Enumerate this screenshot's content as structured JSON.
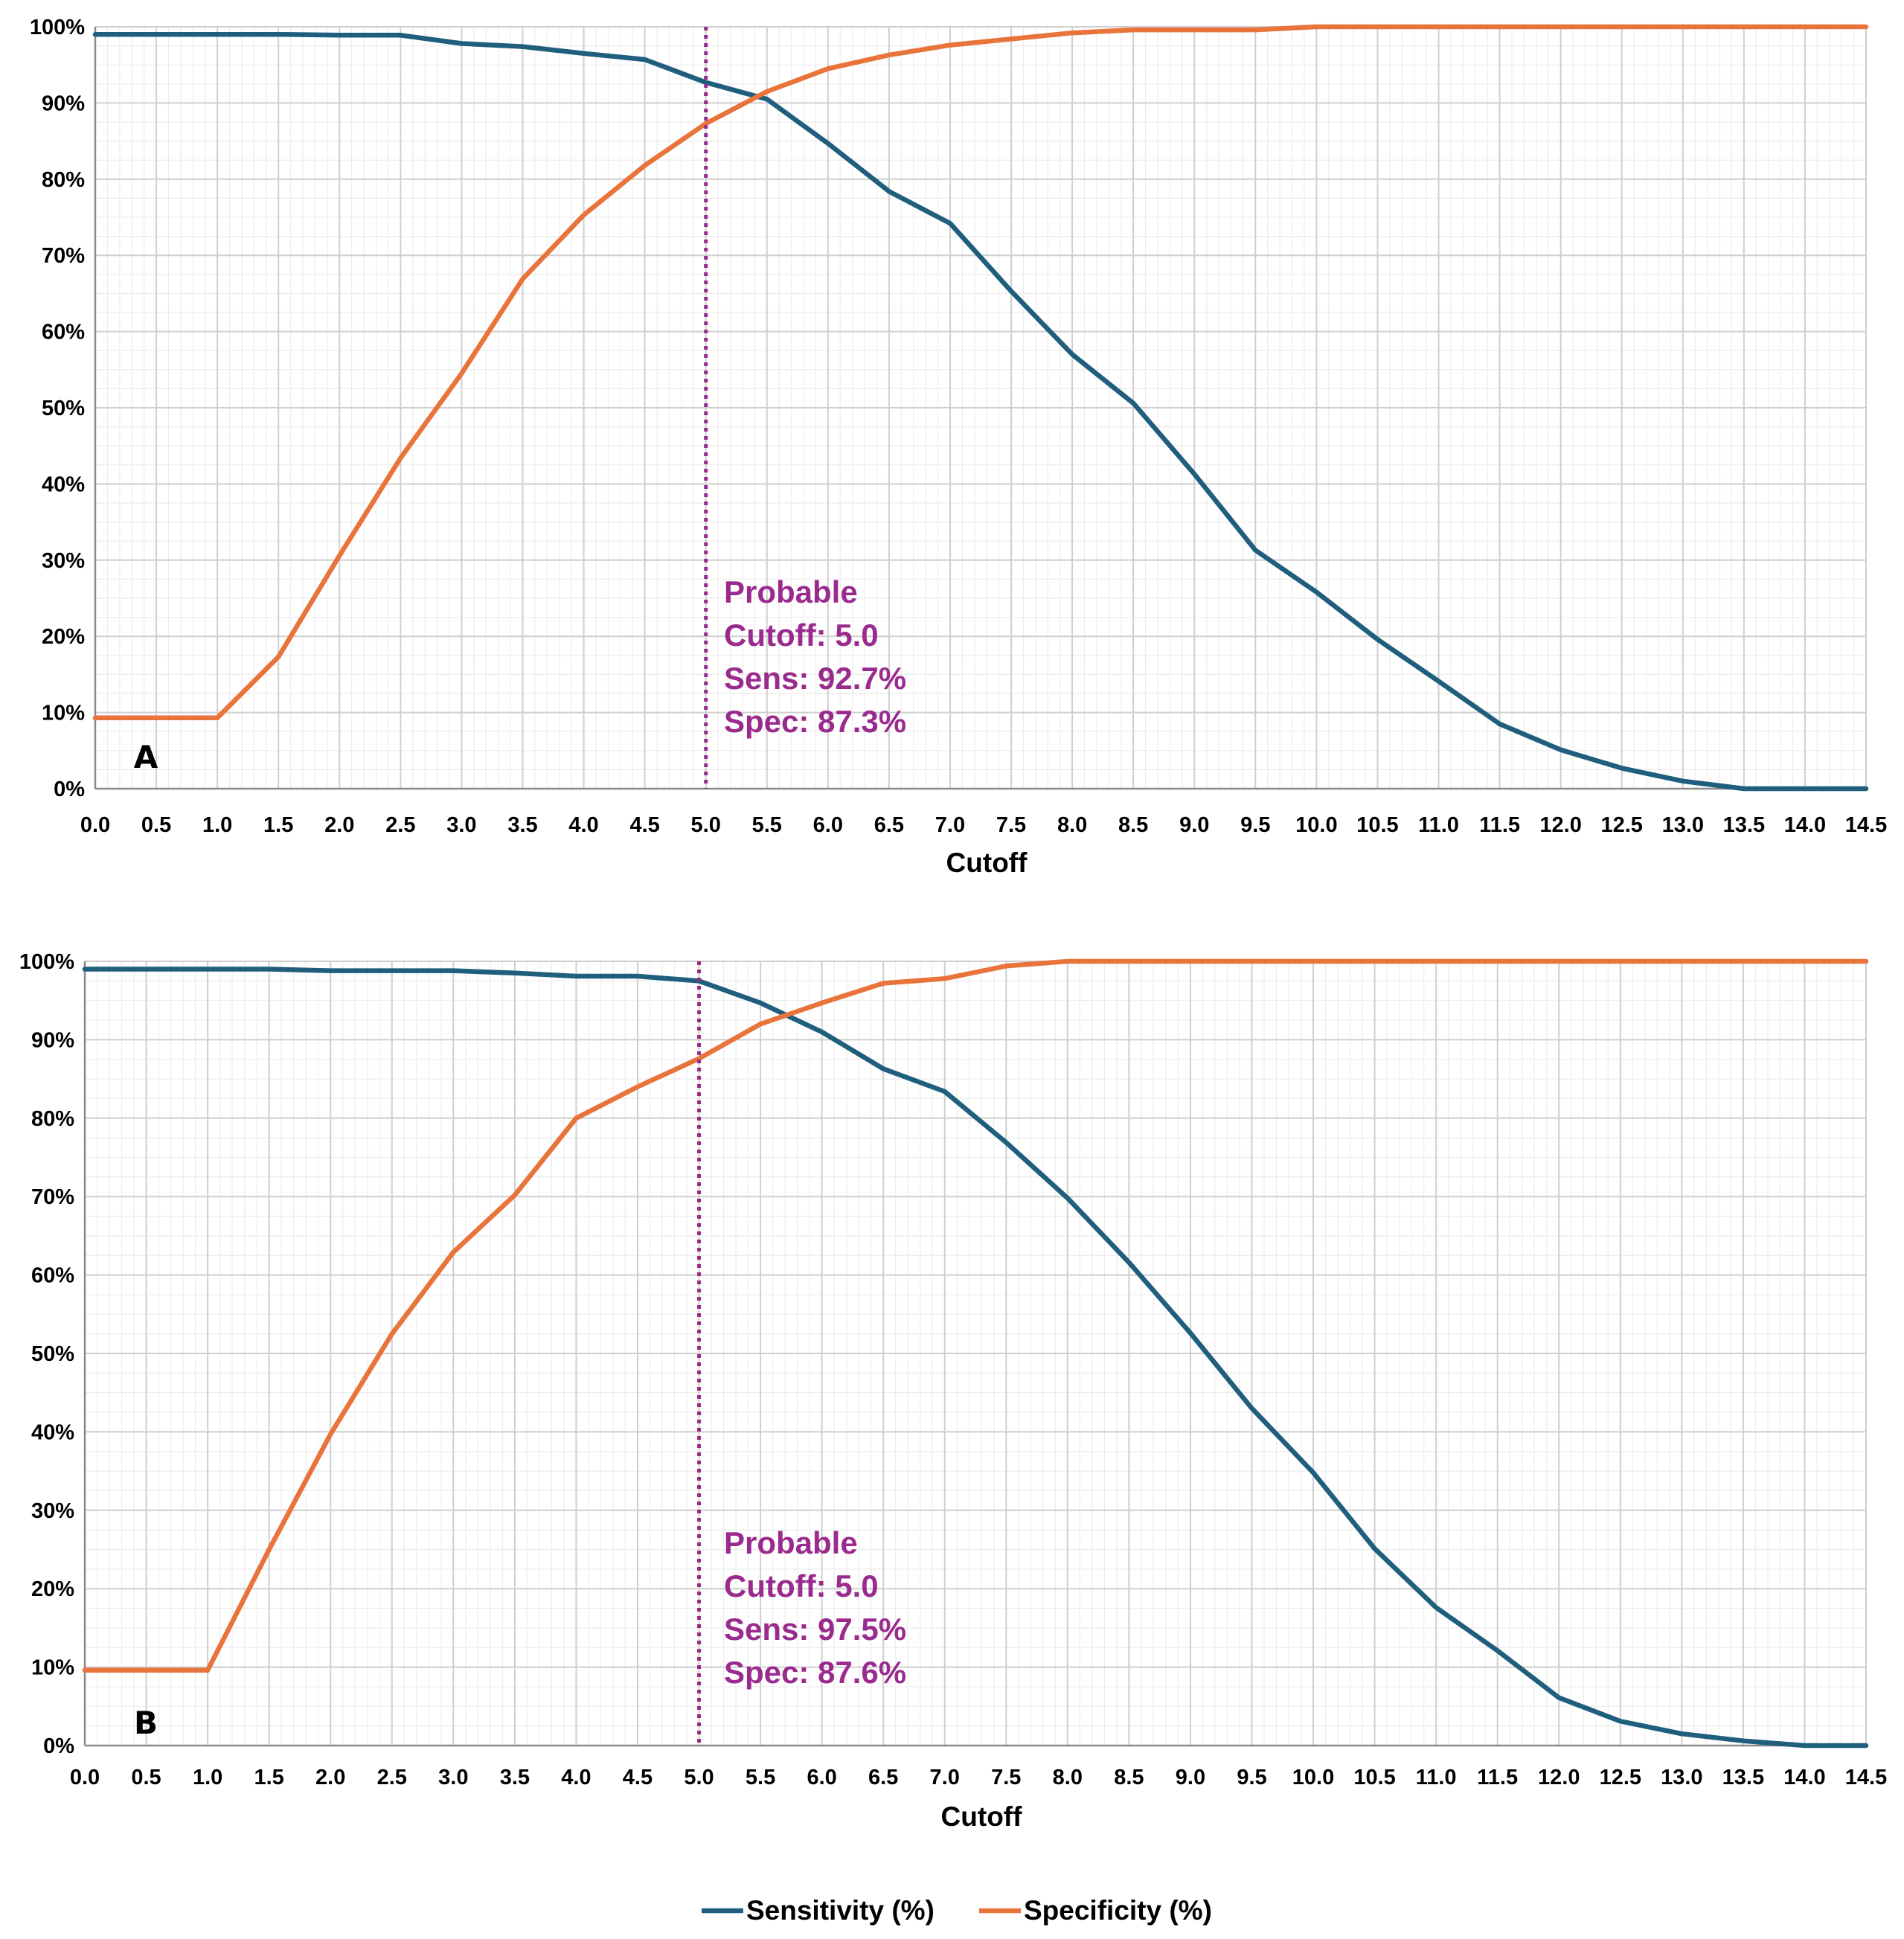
{
  "chart_data": [
    {
      "type": "line",
      "panel_label": "A",
      "xlabel": "Cutoff",
      "ylabel": "",
      "x": [
        0.0,
        0.5,
        1.0,
        1.5,
        2.0,
        2.5,
        3.0,
        3.5,
        4.0,
        4.5,
        5.0,
        5.5,
        6.0,
        6.5,
        7.0,
        7.5,
        8.0,
        8.5,
        9.0,
        9.5,
        10.0,
        10.5,
        11.0,
        11.5,
        12.0,
        12.5,
        13.0,
        13.5,
        14.0,
        14.5
      ],
      "x_tick_labels": [
        "0.0",
        "0.5",
        "1.0",
        "1.5",
        "2.0",
        "2.5",
        "3.0",
        "3.5",
        "4.0",
        "4.5",
        "5.0",
        "5.5",
        "6.0",
        "6.5",
        "7.0",
        "7.5",
        "8.0",
        "8.5",
        "9.0",
        "9.5",
        "10.0",
        "10.5",
        "11.0",
        "11.5",
        "12.0",
        "12.5",
        "13.0",
        "13.5",
        "14.0",
        "14.5"
      ],
      "y_tick_labels": [
        "0%",
        "10%",
        "20%",
        "30%",
        "40%",
        "50%",
        "60%",
        "70%",
        "80%",
        "90%",
        "100%"
      ],
      "xlim": [
        0,
        14.5
      ],
      "ylim": [
        0,
        100
      ],
      "grid": true,
      "series": [
        {
          "name": "Sensitivity (%)",
          "color": "#1f5e7c",
          "values": [
            99.0,
            99.0,
            99.0,
            99.0,
            98.9,
            98.9,
            97.8,
            97.4,
            96.5,
            95.7,
            92.7,
            90.5,
            84.7,
            78.4,
            74.2,
            65.3,
            57.0,
            50.6,
            41.3,
            31.3,
            25.8,
            19.6,
            14.1,
            8.5,
            5.1,
            2.7,
            1.0,
            0.0,
            0.0,
            0.0
          ]
        },
        {
          "name": "Specificity (%)",
          "color": "#e8743b",
          "values": [
            9.3,
            9.3,
            9.3,
            17.3,
            30.6,
            43.4,
            54.5,
            66.9,
            75.3,
            81.8,
            87.3,
            91.5,
            94.5,
            96.3,
            97.6,
            98.4,
            99.2,
            99.6,
            99.6,
            99.6,
            100.0,
            100.0,
            100.0,
            100.0,
            100.0,
            100.0,
            100.0,
            100.0,
            100.0,
            100.0
          ]
        }
      ],
      "cutoff_line_x": 5.0,
      "annotation": {
        "line1": "Probable",
        "line2": "Cutoff: 5.0",
        "line3": "Sens: 92.7%",
        "line4": "Spec: 87.3%",
        "color": "#9a2a8e"
      }
    },
    {
      "type": "line",
      "panel_label": "B",
      "xlabel": "Cutoff",
      "ylabel": "",
      "x": [
        0.0,
        0.5,
        1.0,
        1.5,
        2.0,
        2.5,
        3.0,
        3.5,
        4.0,
        4.5,
        5.0,
        5.5,
        6.0,
        6.5,
        7.0,
        7.5,
        8.0,
        8.5,
        9.0,
        9.5,
        10.0,
        10.5,
        11.0,
        11.5,
        12.0,
        12.5,
        13.0,
        13.5,
        14.0,
        14.5
      ],
      "x_tick_labels": [
        "0.0",
        "0.5",
        "1.0",
        "1.5",
        "2.0",
        "2.5",
        "3.0",
        "3.5",
        "4.0",
        "4.5",
        "5.0",
        "5.5",
        "6.0",
        "6.5",
        "7.0",
        "7.5",
        "8.0",
        "8.5",
        "9.0",
        "9.5",
        "10.0",
        "10.5",
        "11.0",
        "11.5",
        "12.0",
        "12.5",
        "13.0",
        "13.5",
        "14.0",
        "14.5"
      ],
      "y_tick_labels": [
        "0%",
        "10%",
        "20%",
        "30%",
        "40%",
        "50%",
        "60%",
        "70%",
        "80%",
        "90%",
        "100%"
      ],
      "xlim": [
        0,
        14.5
      ],
      "ylim": [
        0,
        100
      ],
      "grid": true,
      "series": [
        {
          "name": "Sensitivity (%)",
          "color": "#1f5e7c",
          "values": [
            99.0,
            99.0,
            99.0,
            99.0,
            98.8,
            98.8,
            98.8,
            98.5,
            98.1,
            98.1,
            97.5,
            94.7,
            91.0,
            86.3,
            83.4,
            76.9,
            69.8,
            61.6,
            52.6,
            43.0,
            34.8,
            25.1,
            17.6,
            12.1,
            6.1,
            3.1,
            1.5,
            0.6,
            0.0,
            0.0
          ]
        },
        {
          "name": "Specificity (%)",
          "color": "#e8743b",
          "values": [
            9.6,
            9.6,
            9.6,
            25.0,
            39.7,
            52.5,
            62.9,
            70.2,
            80.0,
            84.0,
            87.6,
            92.0,
            94.7,
            97.2,
            97.8,
            99.4,
            100.0,
            100.0,
            100.0,
            100.0,
            100.0,
            100.0,
            100.0,
            100.0,
            100.0,
            100.0,
            100.0,
            100.0,
            100.0,
            100.0
          ]
        }
      ],
      "cutoff_line_x": 5.0,
      "annotation": {
        "line1": "Probable",
        "line2": "Cutoff: 5.0",
        "line3": "Sens: 97.5%",
        "line4": "Spec: 87.6%",
        "color": "#9a2a8e"
      }
    }
  ],
  "legend": {
    "position": "bottom-center",
    "items": [
      {
        "label": "Sensitivity (%)",
        "color": "#1f5e7c"
      },
      {
        "label": "Specificity (%)",
        "color": "#e8743b"
      }
    ]
  }
}
